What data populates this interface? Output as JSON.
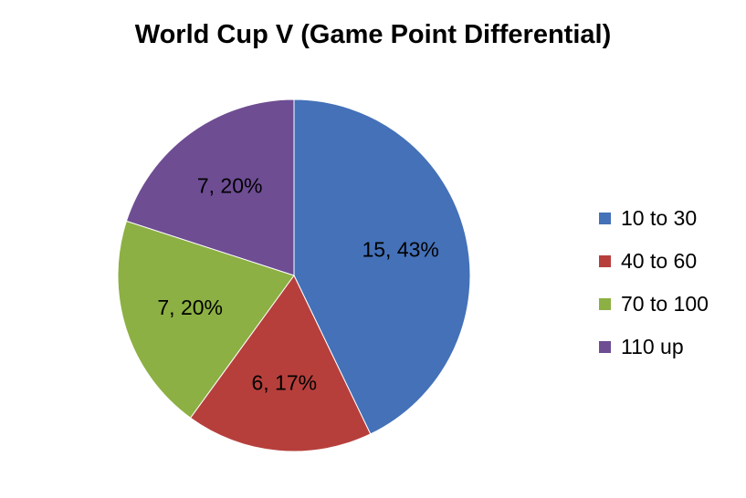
{
  "chart_data": {
    "type": "pie",
    "title": "World Cup V (Game Point Differential)",
    "slices": [
      {
        "name": "10 to 30",
        "value": 15,
        "percent": "43%",
        "label": "15, 43%",
        "color": "#4471B8"
      },
      {
        "name": "40 to 60",
        "value": 6,
        "percent": "17%",
        "label": "6, 17%",
        "color": "#B63F3C"
      },
      {
        "name": "70 to 100",
        "value": 7,
        "percent": "20%",
        "label": "7, 20%",
        "color": "#8CB043"
      },
      {
        "name": "110 up",
        "value": 7,
        "percent": "20%",
        "label": "7, 20%",
        "color": "#6E4D93"
      }
    ],
    "legend_position": "right"
  }
}
